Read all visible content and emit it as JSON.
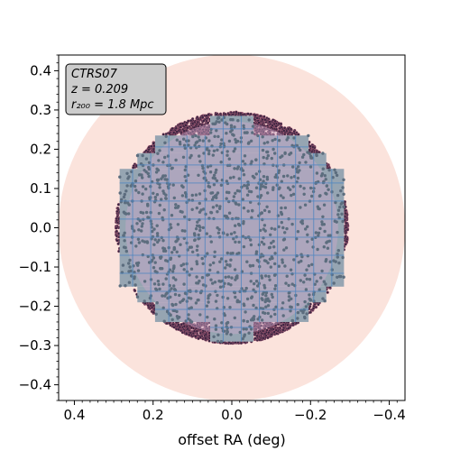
{
  "chart_data": {
    "type": "scatter",
    "xlabel": "offset RA (deg)",
    "ylabel": "",
    "xlim": [
      0.44,
      -0.44
    ],
    "ylim": [
      -0.44,
      0.44
    ],
    "x_ticks": [
      0.4,
      0.2,
      0.0,
      -0.2,
      -0.4
    ],
    "x_tick_labels": [
      "0.4",
      "0.2",
      "0.0",
      "−0.2",
      "−0.4"
    ],
    "y_ticks": [
      0.4,
      0.3,
      0.2,
      0.1,
      0.0,
      -0.1,
      -0.2,
      -0.3,
      -0.4
    ],
    "y_tick_labels": [
      "0.4",
      "0.3",
      "0.2",
      "0.1",
      "0.0",
      "−0.1",
      "−0.2",
      "−0.3",
      "−0.4"
    ],
    "grid": false,
    "annotation": {
      "name": "CTRS07",
      "redshift": "z = 0.209",
      "radius": "r₂₀₀ = 1.8 Mpc",
      "placement": "top-left"
    },
    "outer_circle": {
      "center": [
        0.0,
        0.0
      ],
      "radius": 0.44,
      "color": "#fbe3dc"
    },
    "inner_circle": {
      "center": [
        0.0,
        0.0
      ],
      "radius": 0.27,
      "color": "#c9a8c9"
    },
    "target_field": {
      "center": [
        0.0,
        0.0
      ],
      "radius": 0.295,
      "color": "#3a2440"
    },
    "covered_region": {
      "color": "#96a5b2",
      "rows": [
        {
          "y": [
            -0.29,
            -0.24
          ],
          "x": [
            0.055,
            -0.055
          ]
        },
        {
          "y": [
            -0.24,
            -0.19
          ],
          "x": [
            0.195,
            -0.195
          ]
        },
        {
          "y": [
            -0.19,
            -0.15
          ],
          "x": [
            0.24,
            -0.24
          ]
        },
        {
          "y": [
            -0.15,
            0.15
          ],
          "x": [
            0.285,
            -0.285
          ]
        },
        {
          "y": [
            0.15,
            0.19
          ],
          "x": [
            0.24,
            -0.24
          ]
        },
        {
          "y": [
            0.19,
            0.235
          ],
          "x": [
            0.195,
            -0.195
          ]
        },
        {
          "y": [
            0.235,
            0.285
          ],
          "x": [
            0.055,
            -0.055
          ]
        }
      ]
    },
    "tile_grid": {
      "color": "#4f86c0",
      "spacing": 0.046
    },
    "observed_points_color": "#5c6d7e"
  }
}
